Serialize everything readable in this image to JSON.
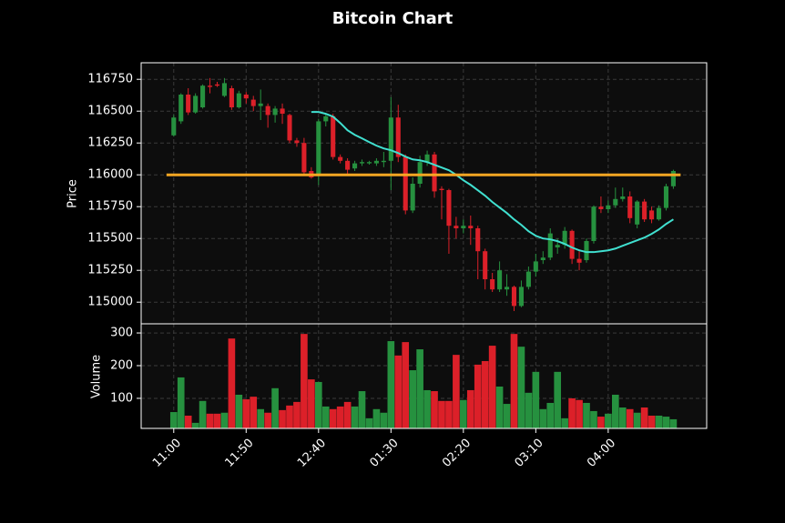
{
  "chart_data": [
    {
      "type": "candlestick",
      "title": "Bitcoin Chart",
      "ylabel": "Price",
      "up_color": "#26913f",
      "down_color": "#dc2029",
      "ma_color": "#40e0d0",
      "hline": {
        "value": 116000,
        "color": "#f5a623"
      },
      "xlim": [
        -4.5,
        73.6
      ],
      "xticks": [
        {
          "value": 0,
          "label": "11:00"
        },
        {
          "value": 10,
          "label": "11:50"
        },
        {
          "value": 20,
          "label": "12:40"
        },
        {
          "value": 30,
          "label": "01:30"
        },
        {
          "value": 40,
          "label": "02:20"
        },
        {
          "value": 50,
          "label": "03:10"
        },
        {
          "value": 60,
          "label": "04:00"
        }
      ],
      "ylim": [
        114830,
        116880
      ],
      "yticks": [
        115000,
        115250,
        115500,
        115750,
        116000,
        116250,
        116500,
        116750
      ],
      "open": [
        116310,
        116420,
        116630,
        116490,
        116530,
        116700,
        116710,
        116620,
        116680,
        116530,
        116630,
        116590,
        116540,
        116540,
        116470,
        116520,
        116470,
        116270,
        116250,
        116030,
        115990,
        116420,
        116460,
        116140,
        116110,
        116050,
        116090,
        116090,
        116090,
        116100,
        116110,
        116450,
        116140,
        115720,
        115930,
        116100,
        116160,
        115890,
        115880,
        115600,
        115580,
        115600,
        115580,
        115400,
        115180,
        115100,
        115100,
        115120,
        114970,
        115120,
        115240,
        115330,
        115350,
        115430,
        115450,
        115560,
        115340,
        115330,
        115480,
        115750,
        115730,
        115760,
        115810,
        115830,
        115610,
        115790,
        115720,
        115650,
        115740,
        115910
      ],
      "close": [
        116450,
        116630,
        116490,
        116620,
        116700,
        116690,
        116700,
        116720,
        116530,
        116640,
        116600,
        116540,
        116560,
        116470,
        116520,
        116480,
        116270,
        116250,
        116020,
        115980,
        116420,
        116460,
        116140,
        116110,
        116040,
        116090,
        116100,
        116100,
        116110,
        116110,
        116450,
        116140,
        115720,
        115930,
        116100,
        116160,
        115870,
        115880,
        115600,
        115580,
        115600,
        115580,
        115400,
        115180,
        115100,
        115250,
        115120,
        114970,
        115120,
        115240,
        115320,
        115350,
        115540,
        115450,
        115560,
        115340,
        115310,
        115480,
        115750,
        115730,
        115760,
        115810,
        115830,
        115660,
        115790,
        115650,
        115650,
        115740,
        115910,
        116030
      ],
      "high": [
        116470,
        116640,
        116680,
        116640,
        116710,
        116760,
        116730,
        116760,
        116700,
        116660,
        116650,
        116620,
        116670,
        116560,
        116540,
        116560,
        116480,
        116290,
        116290,
        116060,
        116440,
        116480,
        116480,
        116160,
        116130,
        116110,
        116120,
        116110,
        116130,
        116180,
        116610,
        116550,
        116160,
        115980,
        116150,
        116190,
        116180,
        115910,
        115890,
        115670,
        115650,
        115680,
        115600,
        115420,
        115230,
        115320,
        115220,
        115130,
        115170,
        115280,
        115380,
        115400,
        115580,
        115500,
        115590,
        115570,
        115400,
        115500,
        115760,
        115830,
        115800,
        115900,
        115900,
        115870,
        115800,
        115810,
        115750,
        115760,
        115930,
        116040
      ],
      "low": [
        116300,
        116400,
        116470,
        116480,
        116520,
        116640,
        116690,
        116610,
        116510,
        116520,
        116560,
        116500,
        116430,
        116370,
        116410,
        116400,
        116250,
        116220,
        116000,
        115970,
        115920,
        116380,
        116120,
        116090,
        116000,
        116030,
        116070,
        116080,
        116070,
        116060,
        115880,
        116100,
        115690,
        115700,
        115900,
        116070,
        115820,
        115650,
        115380,
        115500,
        115540,
        115450,
        115180,
        115100,
        115080,
        115080,
        115050,
        114930,
        114960,
        115100,
        115200,
        115300,
        115330,
        115380,
        115420,
        115300,
        115250,
        115310,
        115460,
        115700,
        115700,
        115740,
        115790,
        115620,
        115580,
        115630,
        115620,
        115640,
        115720,
        115890
      ],
      "ma": [
        null,
        null,
        null,
        null,
        null,
        null,
        null,
        null,
        null,
        null,
        null,
        null,
        null,
        null,
        null,
        null,
        null,
        null,
        null,
        116493,
        116493,
        116479,
        116457,
        116407,
        116350,
        116314,
        116286,
        116257,
        116229,
        116207,
        116193,
        116171,
        116143,
        116121,
        116114,
        116100,
        116079,
        116057,
        116036,
        116000,
        115957,
        115921,
        115879,
        115836,
        115786,
        115743,
        115700,
        115650,
        115607,
        115557,
        115521,
        115500,
        115493,
        115479,
        115457,
        115429,
        115407,
        115393,
        115393,
        115400,
        115407,
        115421,
        115443,
        115464,
        115486,
        115507,
        115536,
        115571,
        115614,
        115650
      ]
    },
    {
      "type": "bar",
      "ylabel": "Volume",
      "ylim": [
        8,
        328
      ],
      "yticks": [
        100,
        200,
        300
      ],
      "values": [
        58,
        164,
        47,
        25,
        92,
        53,
        53,
        56,
        283,
        111,
        97,
        105,
        67,
        56,
        131,
        64,
        78,
        89,
        297,
        158,
        150,
        75,
        67,
        75,
        89,
        75,
        122,
        39,
        67,
        56,
        275,
        231,
        272,
        186,
        250,
        125,
        122,
        92,
        92,
        233,
        95,
        125,
        203,
        214,
        261,
        136,
        83,
        297,
        258,
        117,
        181,
        67,
        86,
        181,
        39,
        100,
        95,
        86,
        61,
        44,
        53,
        111,
        72,
        67,
        56,
        72,
        47,
        47,
        44,
        36
      ]
    }
  ]
}
